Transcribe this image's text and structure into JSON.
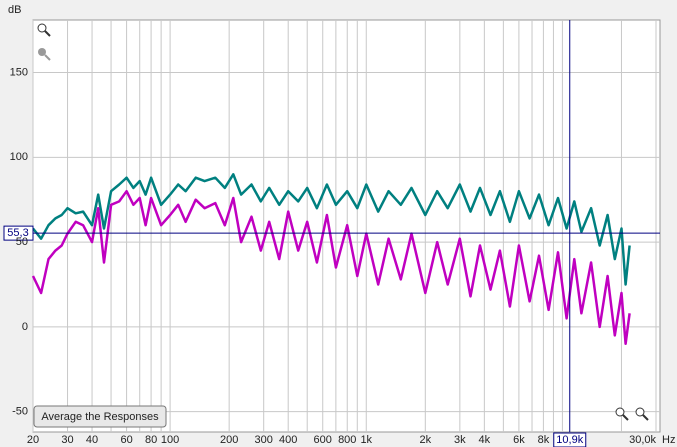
{
  "chart_data": {
    "type": "line",
    "y_unit": "dB",
    "x_unit": "Hz",
    "log_x": true,
    "grid": true,
    "xlim": [
      20,
      30000
    ],
    "ylim": [
      -62,
      181
    ],
    "yticks": [
      150,
      100,
      50,
      0,
      -50
    ],
    "xticks": [
      20,
      30,
      40,
      60,
      80,
      100,
      {
        "value": 200,
        "label": "200"
      },
      300,
      400,
      600,
      800,
      {
        "value": 1000,
        "label": "1k"
      },
      {
        "value": 2000,
        "label": "2k"
      },
      {
        "value": 3000,
        "label": "3k"
      },
      {
        "value": 4000,
        "label": "4k"
      },
      {
        "value": 6000,
        "label": "6k"
      },
      {
        "value": 8000,
        "label": "8k"
      },
      {
        "value": 30000,
        "label": "30,0k"
      }
    ],
    "xminor": [
      50,
      70,
      90,
      500,
      700,
      900,
      5000,
      7000,
      9000,
      10000,
      20000
    ],
    "cursor": {
      "x": 10900,
      "x_label": "10,9k",
      "y": 55.3,
      "y_label": "55,3",
      "color": "#000080"
    },
    "button": "Average the Responses",
    "x": [
      20,
      22,
      24,
      26,
      28,
      30,
      33,
      36,
      40,
      43,
      46,
      50,
      55,
      60,
      65,
      70,
      75,
      80,
      90,
      100,
      110,
      120,
      135,
      150,
      170,
      190,
      210,
      230,
      260,
      290,
      320,
      360,
      400,
      450,
      500,
      560,
      630,
      700,
      800,
      900,
      1000,
      1150,
      1300,
      1500,
      1700,
      2000,
      2300,
      2600,
      3000,
      3400,
      3800,
      4300,
      4800,
      5400,
      6000,
      6800,
      7600,
      8500,
      9500,
      10500,
      11500,
      12500,
      14000,
      15500,
      17000,
      18500,
      20000,
      21000,
      22000
    ],
    "series": [
      {
        "color": "#008080",
        "values": [
          58,
          52,
          60,
          64,
          66,
          70,
          67,
          68,
          60,
          78,
          58,
          80,
          84,
          88,
          82,
          86,
          78,
          88,
          72,
          78,
          84,
          80,
          88,
          86,
          88,
          82,
          90,
          78,
          84,
          74,
          82,
          72,
          80,
          74,
          82,
          70,
          84,
          72,
          80,
          70,
          84,
          68,
          80,
          72,
          82,
          66,
          80,
          70,
          84,
          68,
          82,
          66,
          80,
          62,
          80,
          64,
          78,
          60,
          76,
          58,
          74,
          56,
          70,
          48,
          66,
          40,
          58,
          25,
          48
        ]
      },
      {
        "color": "#c000c0",
        "values": [
          30,
          20,
          40,
          45,
          48,
          55,
          62,
          60,
          50,
          70,
          38,
          72,
          74,
          80,
          72,
          76,
          60,
          76,
          60,
          66,
          72,
          62,
          75,
          70,
          73,
          60,
          76,
          50,
          65,
          45,
          62,
          40,
          68,
          45,
          62,
          38,
          66,
          35,
          60,
          30,
          55,
          25,
          52,
          28,
          55,
          20,
          50,
          25,
          52,
          18,
          48,
          22,
          45,
          12,
          48,
          15,
          42,
          10,
          44,
          5,
          40,
          8,
          38,
          0,
          30,
          -5,
          20,
          -10,
          8
        ]
      }
    ]
  }
}
